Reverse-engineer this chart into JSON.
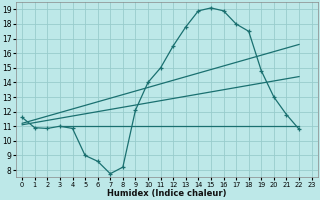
{
  "xlabel": "Humidex (Indice chaleur)",
  "bg_color": "#bde8e8",
  "grid_color": "#98cccc",
  "line_color": "#1a7070",
  "xlim": [
    -0.5,
    23.5
  ],
  "ylim": [
    7.5,
    19.5
  ],
  "xticks": [
    0,
    1,
    2,
    3,
    4,
    5,
    6,
    7,
    8,
    9,
    10,
    11,
    12,
    13,
    14,
    15,
    16,
    17,
    18,
    19,
    20,
    21,
    22,
    23
  ],
  "yticks": [
    8,
    9,
    10,
    11,
    12,
    13,
    14,
    15,
    16,
    17,
    18,
    19
  ],
  "line1_x": [
    0,
    1,
    2,
    3,
    4,
    5,
    6,
    7,
    8,
    9,
    10,
    11,
    12,
    13,
    14,
    15,
    16,
    17,
    18,
    19,
    20,
    21,
    22
  ],
  "line1_y": [
    11.6,
    10.9,
    10.85,
    11.0,
    10.85,
    9.0,
    8.6,
    7.75,
    8.2,
    12.1,
    14.0,
    15.0,
    16.5,
    17.8,
    18.9,
    19.1,
    18.9,
    18.0,
    17.5,
    14.8,
    13.0,
    11.8,
    10.8
  ],
  "line2_x": [
    0,
    22
  ],
  "line2_y": [
    11.2,
    16.6
  ],
  "line3_x": [
    0,
    22
  ],
  "line3_y": [
    11.1,
    14.4
  ],
  "line4_x": [
    3,
    22
  ],
  "line4_y": [
    11.0,
    11.0
  ]
}
